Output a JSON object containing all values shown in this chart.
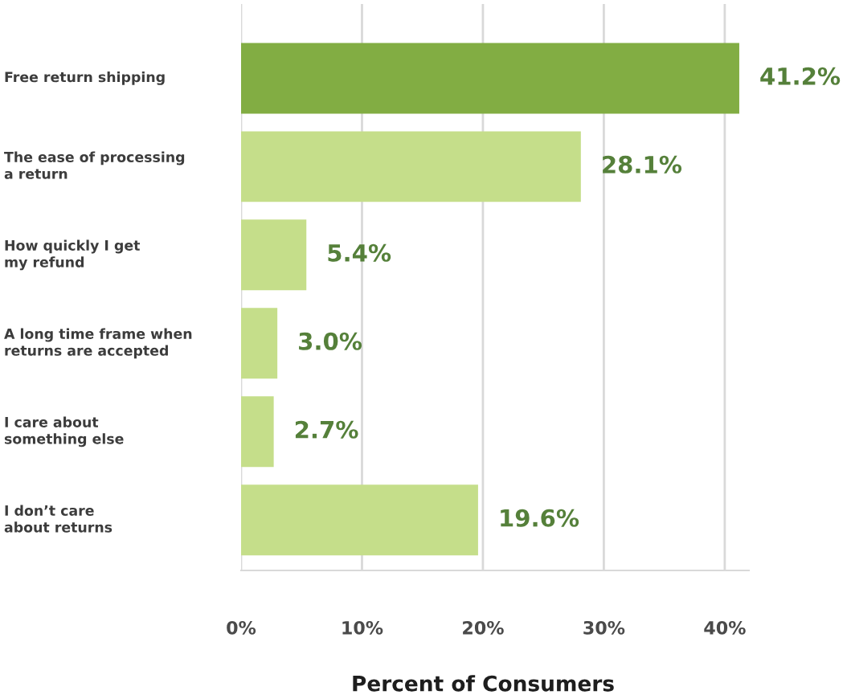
{
  "chart_data": {
    "type": "bar",
    "orientation": "horizontal",
    "xlabel": "Percent of Consumers",
    "categories": [
      "Free return shipping",
      "The ease of processing\na return",
      "How quickly I get\nmy refund",
      "A long time frame when\nreturns are accepted",
      "I care about\nsomething else",
      "I don’t care\nabout returns"
    ],
    "values": [
      41.2,
      28.1,
      5.4,
      3.0,
      2.7,
      19.6
    ],
    "colors": [
      "#82ad43",
      "#c5de8a",
      "#c5de8a",
      "#c5de8a",
      "#c5de8a",
      "#c5de8a"
    ],
    "value_labels": [
      "41.2%",
      "28.1%",
      "5.4%",
      "3.0%",
      "2.7%",
      "19.6%"
    ],
    "xlim": [
      0,
      42
    ],
    "xticks": [
      {
        "value": 0,
        "label": "0%"
      },
      {
        "value": 10,
        "label": "10%"
      },
      {
        "value": 20,
        "label": "20%"
      },
      {
        "value": 30,
        "label": "30%"
      },
      {
        "value": 40,
        "label": "40%"
      }
    ],
    "grid": "x"
  }
}
